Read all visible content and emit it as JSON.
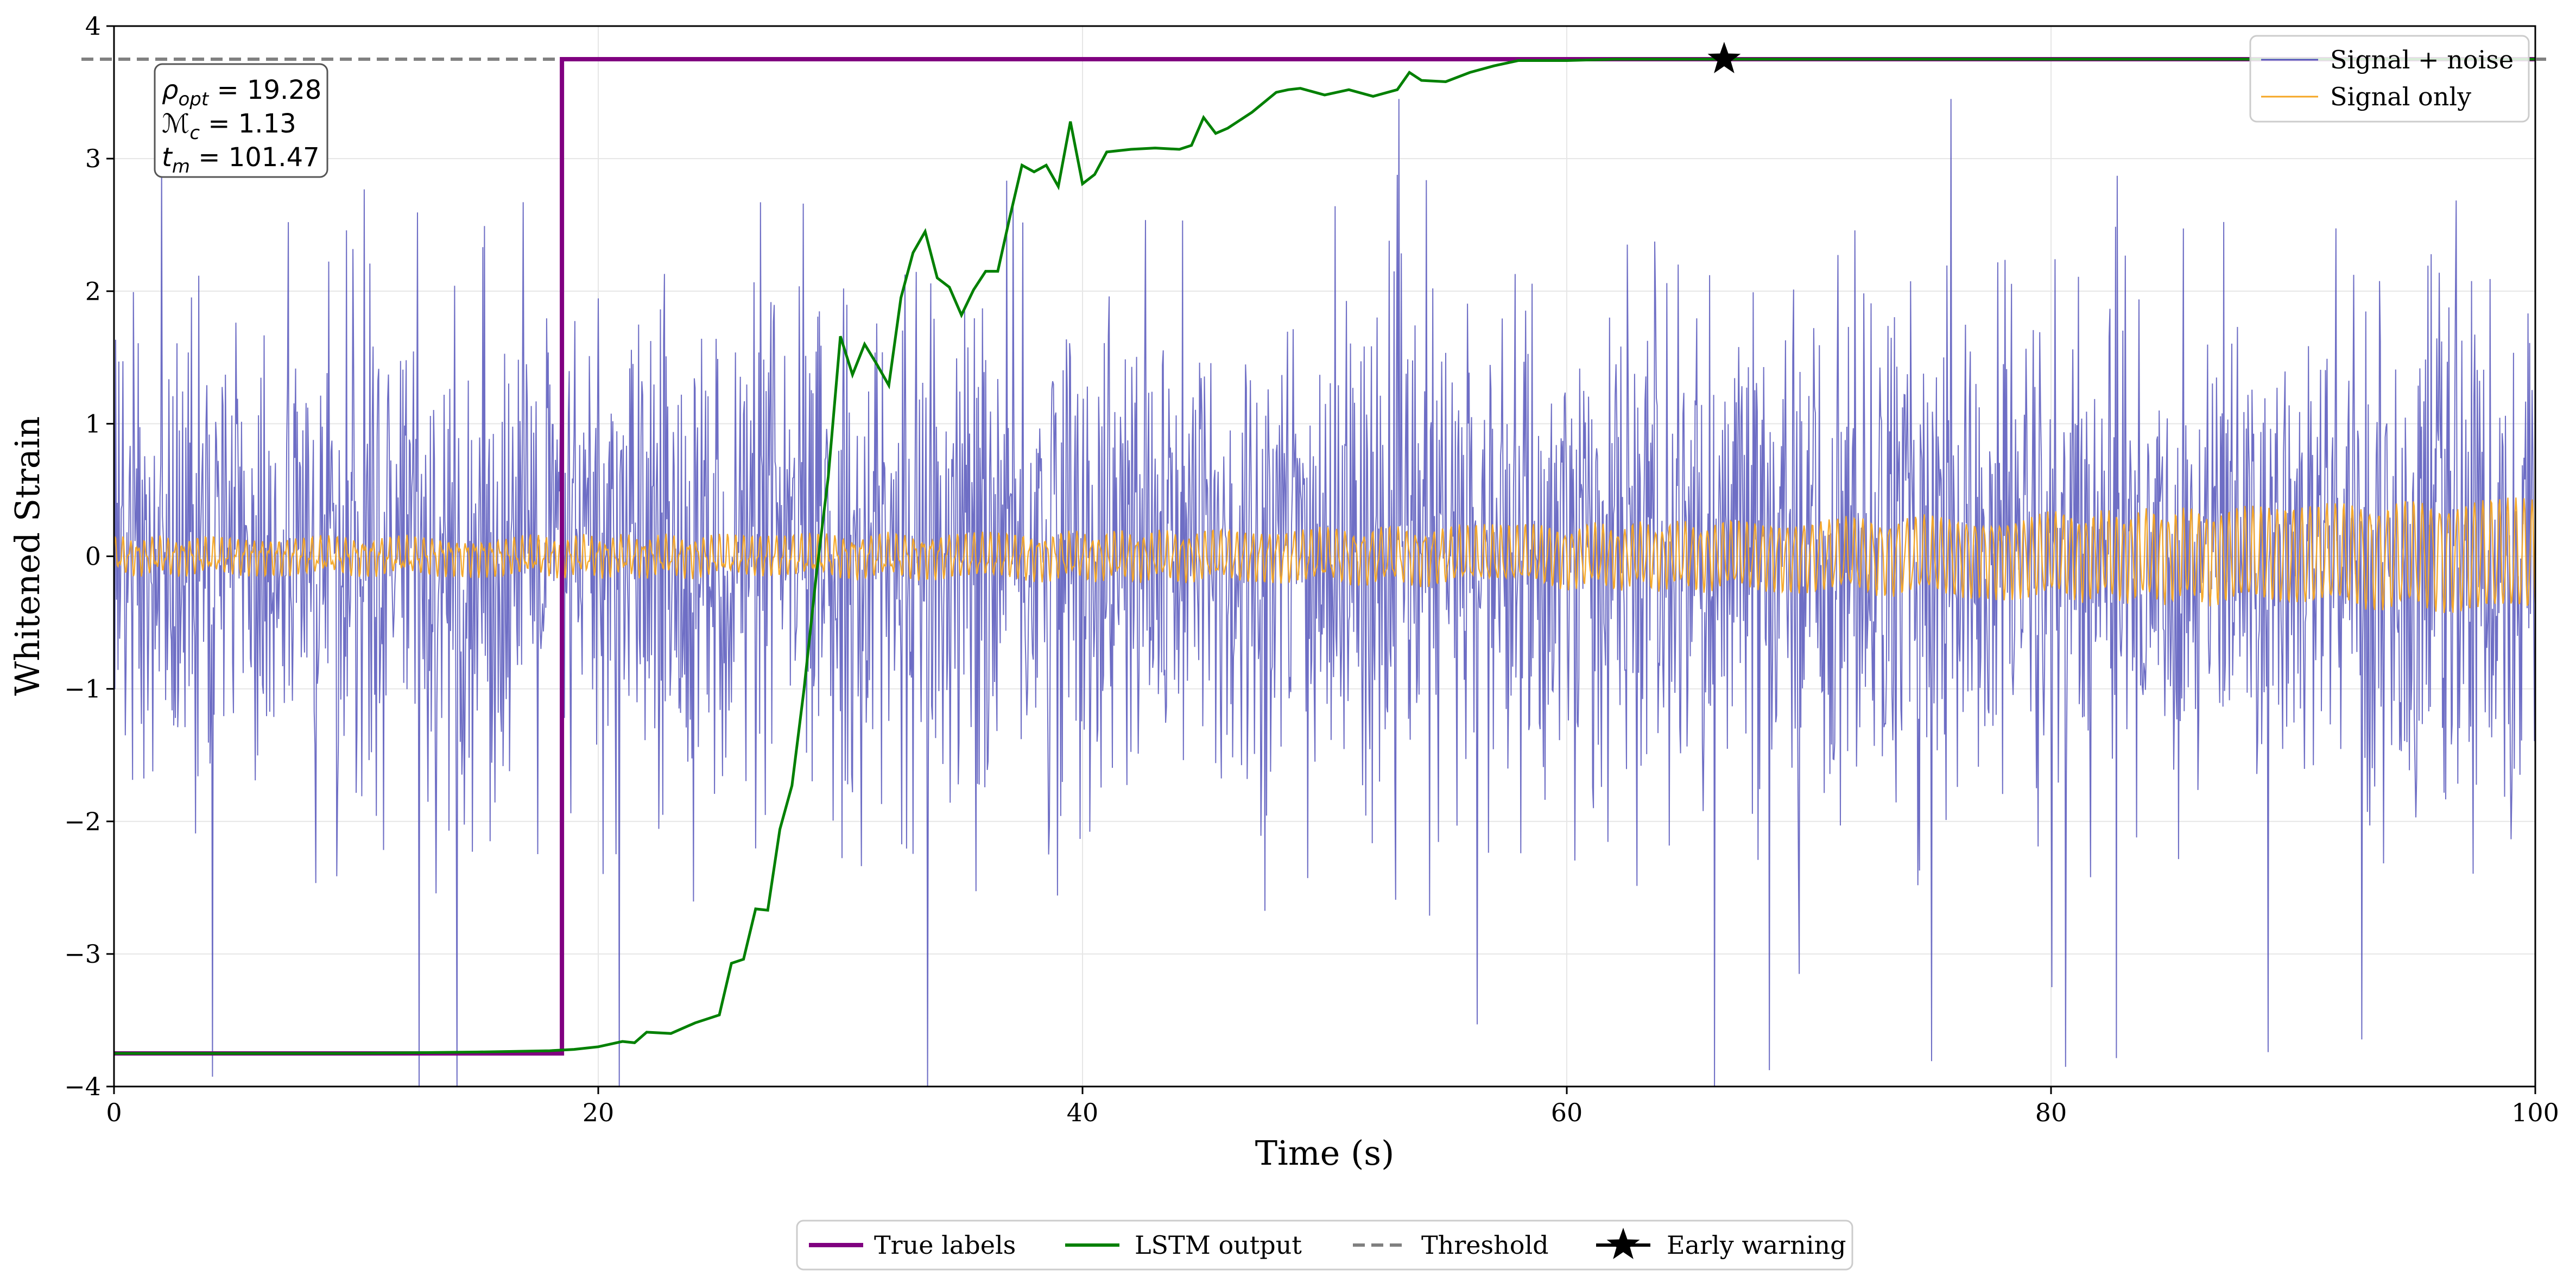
{
  "chart_data": {
    "type": "line",
    "xlabel": "Time (s)",
    "ylabel": "Whitened Strain",
    "xlim": [
      0,
      100
    ],
    "ylim": [
      -4,
      4
    ],
    "grid": true,
    "x_ticks": [
      0,
      20,
      40,
      60,
      80,
      100
    ],
    "x_tick_labels": [
      "0",
      "20",
      "40",
      "60",
      "80",
      "100"
    ],
    "y_ticks": [
      -4,
      -3,
      -2,
      -1,
      0,
      1,
      2,
      3,
      4
    ],
    "y_tick_labels": [
      "−4",
      "−3",
      "−2",
      "−1",
      "0",
      "1",
      "2",
      "3",
      "4"
    ],
    "threshold": 3.75,
    "series": [
      {
        "name": "Signal + noise",
        "color": "#5555bb",
        "description": "dense noise samples roughly in [-2.5, 3.4], occasional spikes to -4",
        "amplitude_range": [
          -4,
          3.45
        ]
      },
      {
        "name": "Signal only",
        "color": "#f5a623",
        "description": "chirp signal, amplitude ~0.1 growing to ~0.4 near 100 s",
        "amplitude_start": 0.1,
        "amplitude_end": 0.4
      },
      {
        "name": "True labels",
        "color": "#800080",
        "step_time": 18.5,
        "low": -3.75,
        "high": 3.75
      },
      {
        "name": "LSTM output",
        "color": "#008000",
        "x": [
          0,
          5,
          10,
          15,
          18,
          19,
          20,
          21,
          21.5,
          22,
          23,
          24,
          25,
          25.5,
          26,
          26.5,
          27,
          27.5,
          28,
          28.5,
          29,
          29.5,
          30,
          30.5,
          31,
          31.5,
          32,
          32.5,
          33,
          33.5,
          34,
          34.5,
          35,
          35.5,
          36,
          36.5,
          37,
          37.5,
          38,
          38.5,
          39,
          39.5,
          40,
          40.5,
          41,
          42,
          43,
          44,
          44.5,
          45,
          45.5,
          46,
          47,
          48,
          48.5,
          49,
          50,
          51,
          52,
          53,
          53.5,
          54,
          55,
          56,
          57,
          58,
          59,
          60,
          62,
          64,
          66.5,
          70,
          75,
          80,
          85,
          90,
          95,
          100
        ],
        "values": [
          -3.75,
          -3.75,
          -3.75,
          -3.74,
          -3.73,
          -3.72,
          -3.7,
          -3.66,
          -3.67,
          -3.59,
          -3.6,
          -3.52,
          -3.46,
          -3.07,
          -3.04,
          -2.66,
          -2.67,
          -2.06,
          -1.73,
          -1.0,
          -0.15,
          0.6,
          1.66,
          1.37,
          1.6,
          1.45,
          1.29,
          1.95,
          2.29,
          2.45,
          2.1,
          2.03,
          1.82,
          2.01,
          2.15,
          2.15,
          2.56,
          2.95,
          2.9,
          2.95,
          2.79,
          3.28,
          2.81,
          2.88,
          3.05,
          3.07,
          3.08,
          3.07,
          3.1,
          3.31,
          3.19,
          3.23,
          3.35,
          3.5,
          3.52,
          3.53,
          3.48,
          3.52,
          3.47,
          3.52,
          3.65,
          3.59,
          3.58,
          3.65,
          3.7,
          3.74,
          3.74,
          3.74,
          3.75,
          3.75,
          3.75,
          3.75,
          3.75,
          3.75,
          3.75,
          3.75,
          3.75,
          3.75
        ]
      },
      {
        "name": "Threshold",
        "color": "#808080",
        "value": 3.75
      }
    ],
    "early_warning": {
      "x": 66.5,
      "y": 3.75
    },
    "annotation": {
      "rho_label": "ρ",
      "rho_sub": "opt",
      "rho_value": "19.28",
      "mc_label": "ℳ",
      "mc_sub": "c",
      "mc_value": "1.13",
      "tm_label": "t",
      "tm_sub": "m",
      "tm_value": "101.47"
    },
    "legend_upper_right": {
      "placement": "top-right",
      "entries": [
        "Signal + noise",
        "Signal only"
      ]
    },
    "legend_bottom": {
      "placement": "bottom-center",
      "entries": [
        "True labels",
        "LSTM output",
        "Threshold",
        "Early warning"
      ]
    }
  },
  "colors": {
    "noise": "#5555bb",
    "signal": "#f5a623",
    "true_labels": "#800080",
    "lstm": "#008000",
    "threshold": "#808080",
    "grid": "#e6e6e6"
  }
}
